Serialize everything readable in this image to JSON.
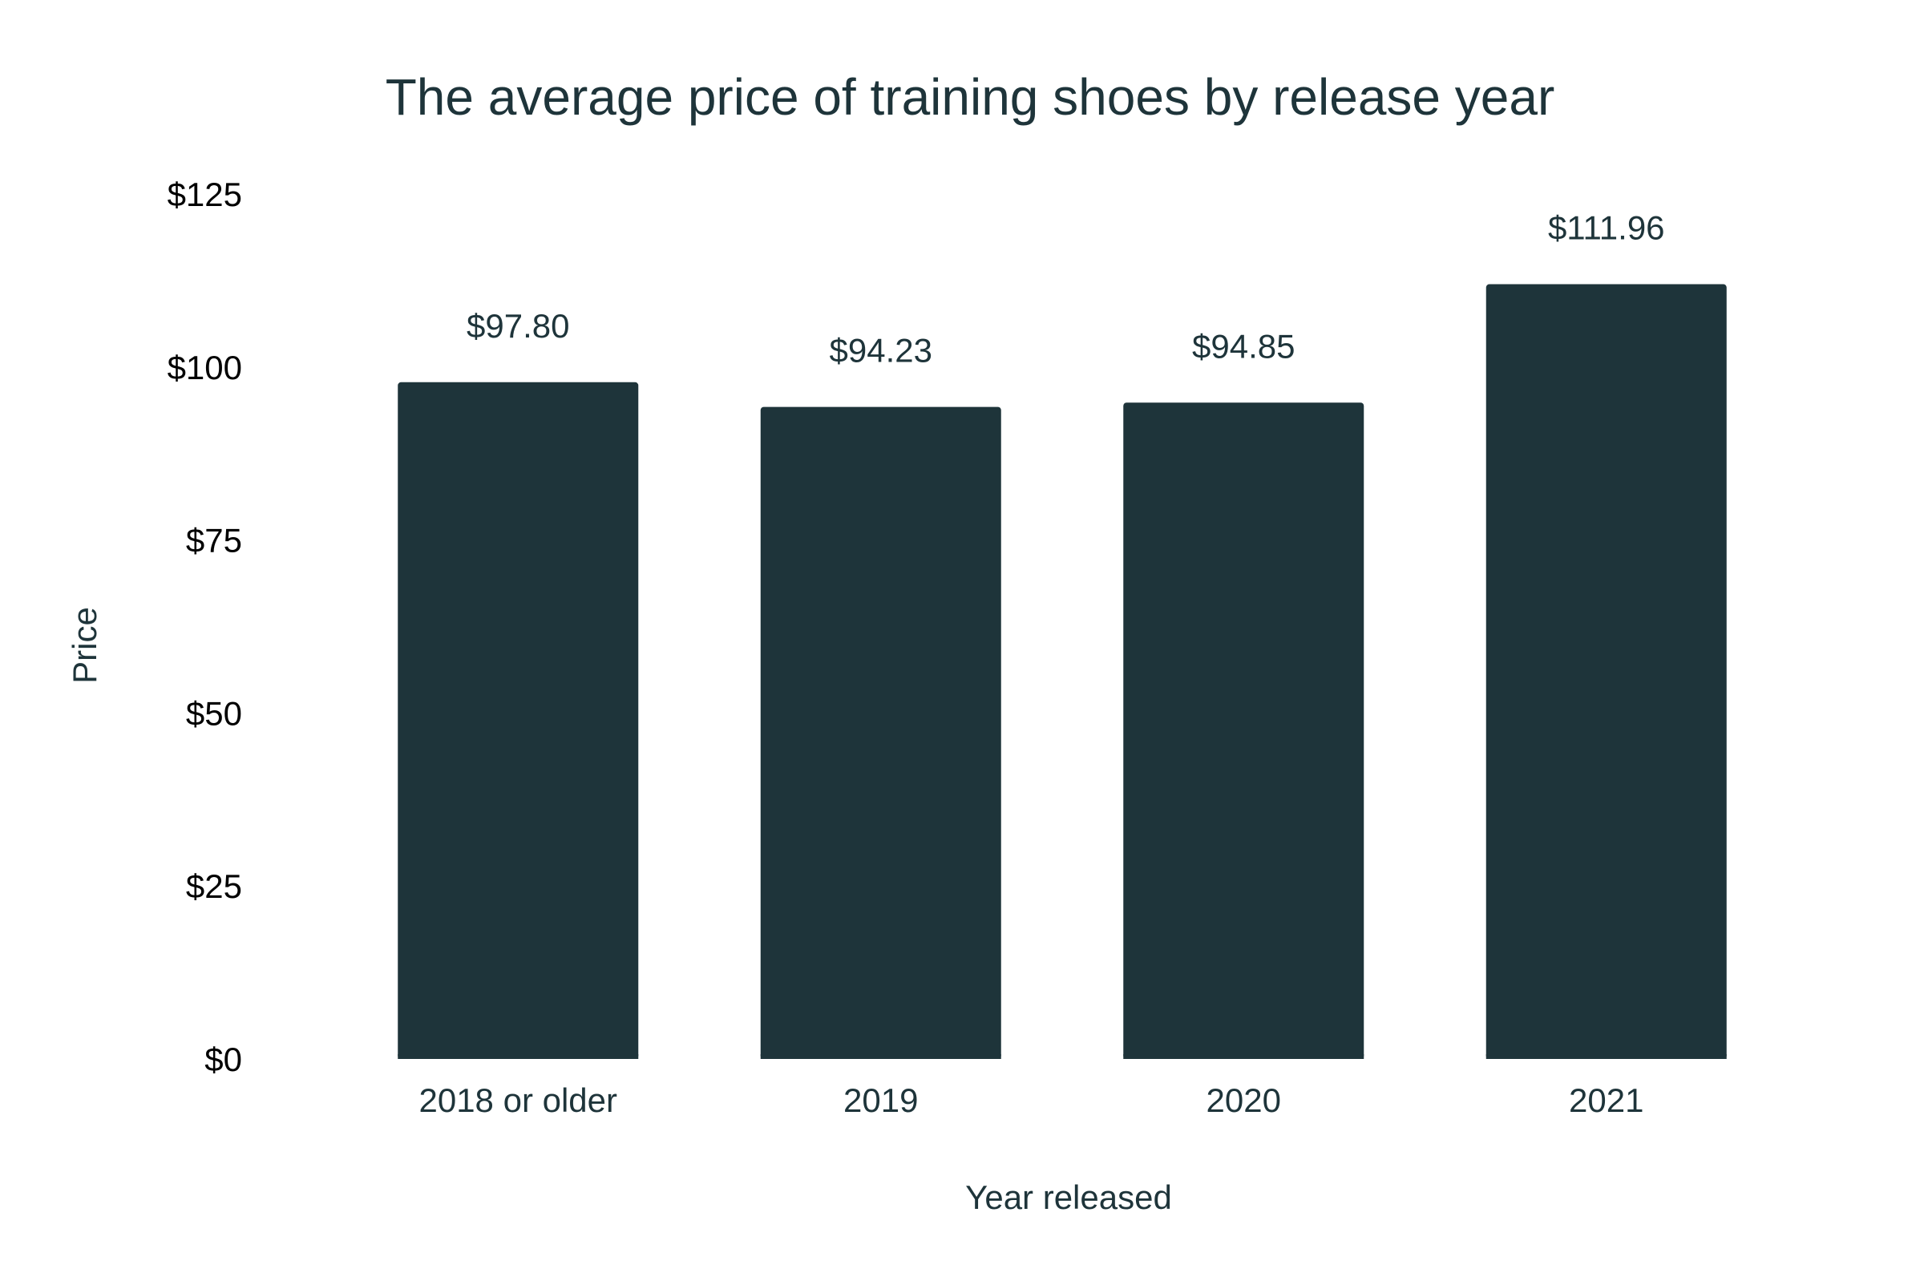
{
  "chart_data": {
    "type": "bar",
    "title": "The average price of training shoes by release year",
    "xlabel": "Year released",
    "ylabel": "Price",
    "categories": [
      "2018 or older",
      "2019",
      "2020",
      "2021"
    ],
    "values": [
      97.8,
      94.23,
      94.85,
      111.96
    ],
    "value_labels": [
      "$97.80",
      "$94.23",
      "$94.85",
      "$111.96"
    ],
    "ylim": [
      0,
      125
    ],
    "yticks": [
      0,
      25,
      50,
      75,
      100,
      125
    ],
    "ytick_labels": [
      "$0",
      "$25",
      "$50",
      "$75",
      "$100",
      "$125"
    ],
    "grid": false,
    "legend": "none",
    "colors": {
      "bar": "#1e343a",
      "text": "#1e343a",
      "tick_text": "#000000"
    }
  }
}
